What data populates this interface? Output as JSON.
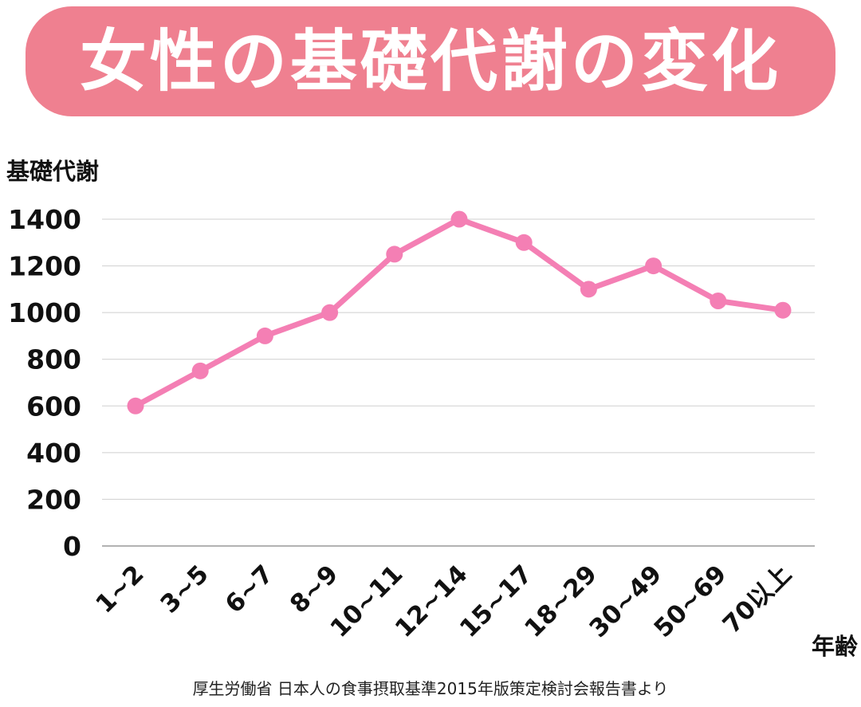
{
  "title": "女性の基礎代謝の変化",
  "source": "厚生労働省 日本人の食事摂取基準2015年版策定検討会報告書より",
  "colors": {
    "banner": "#ef8090",
    "line": "#f47fb4",
    "grid": "#cfcfcf",
    "axis": "#999999"
  },
  "chart_data": {
    "type": "line",
    "title": "女性の基礎代謝の変化",
    "ylabel": "基礎代謝",
    "xlabel": "年齢",
    "categories": [
      "1~2",
      "3~5",
      "6~7",
      "8~9",
      "10~11",
      "12~14",
      "15~17",
      "18~29",
      "30~49",
      "50~69",
      "70以上"
    ],
    "series": [
      {
        "name": "基礎代謝",
        "values": [
          600,
          750,
          900,
          1000,
          1250,
          1400,
          1300,
          1100,
          1200,
          1050,
          1010
        ]
      }
    ],
    "ylim": [
      0,
      1400
    ],
    "yticks": [
      0,
      200,
      400,
      600,
      800,
      1000,
      1200,
      1400
    ],
    "grid": true,
    "legend": "none"
  }
}
